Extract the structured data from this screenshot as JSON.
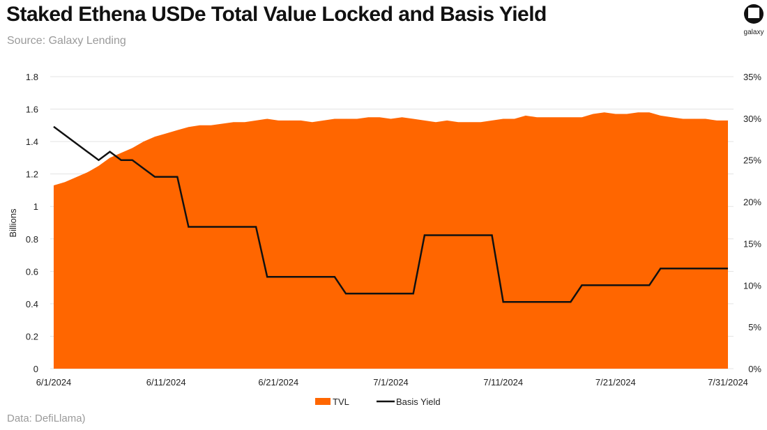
{
  "header": {
    "title": "Staked Ethena USDe Total Value Locked and Basis Yield",
    "subtitle": "Source: Galaxy Lending",
    "logo_text": "galaxy"
  },
  "footer": {
    "note": "Data: DefiLlama)"
  },
  "colors": {
    "tvl": "#FF6600",
    "yield": "#111111",
    "grid": "#e3e3e3"
  },
  "chart_data": {
    "type": "area+line",
    "title": "Staked Ethena USDe Total Value Locked and Basis Yield",
    "ylabel": "Billions",
    "ylim": [
      0,
      1.8
    ],
    "y2lim": [
      0,
      35
    ],
    "yticks": [
      "0",
      "0.2",
      "0.4",
      "0.6",
      "0.8",
      "1",
      "1.2",
      "1.4",
      "1.6",
      "1.8"
    ],
    "y2ticks": [
      "0%",
      "5%",
      "10%",
      "15%",
      "20%",
      "25%",
      "30%",
      "35%"
    ],
    "xticks": [
      "6/1/2024",
      "6/11/2024",
      "6/21/2024",
      "7/1/2024",
      "7/11/2024",
      "7/21/2024",
      "7/31/2024"
    ],
    "x_start": "6/1/2024",
    "x_end": "7/31/2024",
    "legend": {
      "position": "bottom",
      "entries": [
        "TVL",
        "Basis Yield"
      ]
    },
    "series": [
      {
        "name": "TVL",
        "type": "area",
        "axis": "left",
        "values": [
          1.13,
          1.15,
          1.18,
          1.21,
          1.25,
          1.3,
          1.33,
          1.36,
          1.4,
          1.43,
          1.45,
          1.47,
          1.49,
          1.5,
          1.5,
          1.51,
          1.52,
          1.52,
          1.53,
          1.54,
          1.53,
          1.53,
          1.53,
          1.52,
          1.53,
          1.54,
          1.54,
          1.54,
          1.55,
          1.55,
          1.54,
          1.55,
          1.54,
          1.53,
          1.52,
          1.53,
          1.52,
          1.52,
          1.52,
          1.53,
          1.54,
          1.54,
          1.56,
          1.55,
          1.55,
          1.55,
          1.55,
          1.55,
          1.57,
          1.58,
          1.57,
          1.57,
          1.58,
          1.58,
          1.56,
          1.55,
          1.54,
          1.54,
          1.54,
          1.53,
          1.53
        ]
      },
      {
        "name": "Basis Yield",
        "type": "line",
        "axis": "right",
        "values": [
          29,
          28,
          27,
          26,
          25,
          26,
          25,
          25,
          24,
          23,
          23,
          23,
          17,
          17,
          17,
          17,
          17,
          17,
          17,
          11,
          11,
          11,
          11,
          11,
          11,
          11,
          9,
          9,
          9,
          9,
          9,
          9,
          9,
          16,
          16,
          16,
          16,
          16,
          16,
          16,
          8,
          8,
          8,
          8,
          8,
          8,
          8,
          10,
          10,
          10,
          10,
          10,
          10,
          10,
          12,
          12,
          12,
          12,
          12,
          12,
          12
        ]
      }
    ]
  }
}
